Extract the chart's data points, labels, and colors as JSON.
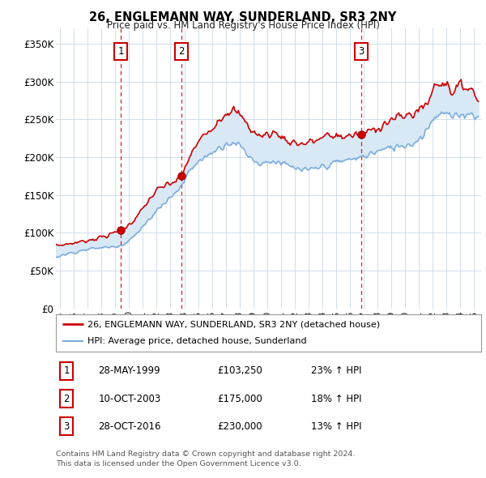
{
  "title": "26, ENGLEMANN WAY, SUNDERLAND, SR3 2NY",
  "subtitle": "Price paid vs. HM Land Registry's House Price Index (HPI)",
  "ylabel_ticks": [
    "£0",
    "£50K",
    "£100K",
    "£150K",
    "£200K",
    "£250K",
    "£300K",
    "£350K"
  ],
  "ytick_values": [
    0,
    50000,
    100000,
    150000,
    200000,
    250000,
    300000,
    350000
  ],
  "ylim": [
    0,
    370000
  ],
  "xlim_start": 1994.7,
  "xlim_end": 2025.5,
  "sale_color": "#cc0000",
  "hpi_color": "#7aabdc",
  "fill_color": "#d8e8f5",
  "sale_points": [
    {
      "year": 1999.41,
      "price": 103250,
      "label": "1"
    },
    {
      "year": 2003.78,
      "price": 175000,
      "label": "2"
    },
    {
      "year": 2016.83,
      "price": 230000,
      "label": "3"
    }
  ],
  "vline_color": "#cc0000",
  "grid_color": "#c8d8e8",
  "legend_entries": [
    "26, ENGLEMANN WAY, SUNDERLAND, SR3 2NY (detached house)",
    "HPI: Average price, detached house, Sunderland"
  ],
  "table_rows": [
    {
      "num": "1",
      "date": "28-MAY-1999",
      "price": "£103,250",
      "change": "23% ↑ HPI"
    },
    {
      "num": "2",
      "date": "10-OCT-2003",
      "price": "£175,000",
      "change": "18% ↑ HPI"
    },
    {
      "num": "3",
      "date": "28-OCT-2016",
      "price": "£230,000",
      "change": "13% ↑ HPI"
    }
  ],
  "footer": "Contains HM Land Registry data © Crown copyright and database right 2024.\nThis data is licensed under the Open Government Licence v3.0.",
  "background_color": "#ffffff"
}
